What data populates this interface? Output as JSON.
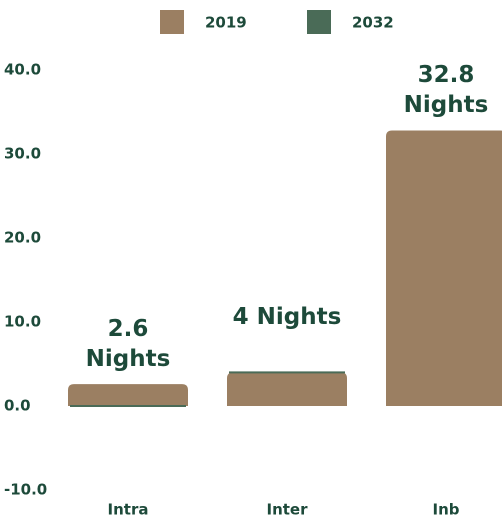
{
  "chart_data": {
    "type": "bar",
    "categories": [
      "Intra",
      "Inter",
      "Inb"
    ],
    "series": [
      {
        "name": "2019",
        "color": "#9b7f62",
        "values": [
          2.6,
          4,
          32.8
        ],
        "value_labels": [
          "2.6 Nights",
          "4 Nights",
          "32.8 Nights"
        ]
      },
      {
        "name": "2032",
        "color": "#4a6b57",
        "values": [
          0,
          4,
          null
        ]
      }
    ],
    "ylim": [
      -10,
      40
    ],
    "yticks": [
      {
        "value": -10,
        "label": "-10.0"
      },
      {
        "value": 0,
        "label": "0.0"
      },
      {
        "value": 10,
        "label": "10.0"
      },
      {
        "value": 20,
        "label": "20.0"
      },
      {
        "value": 30,
        "label": "30.0"
      },
      {
        "value": 40,
        "label": "40.0"
      }
    ],
    "grid": false,
    "legend": "top"
  }
}
